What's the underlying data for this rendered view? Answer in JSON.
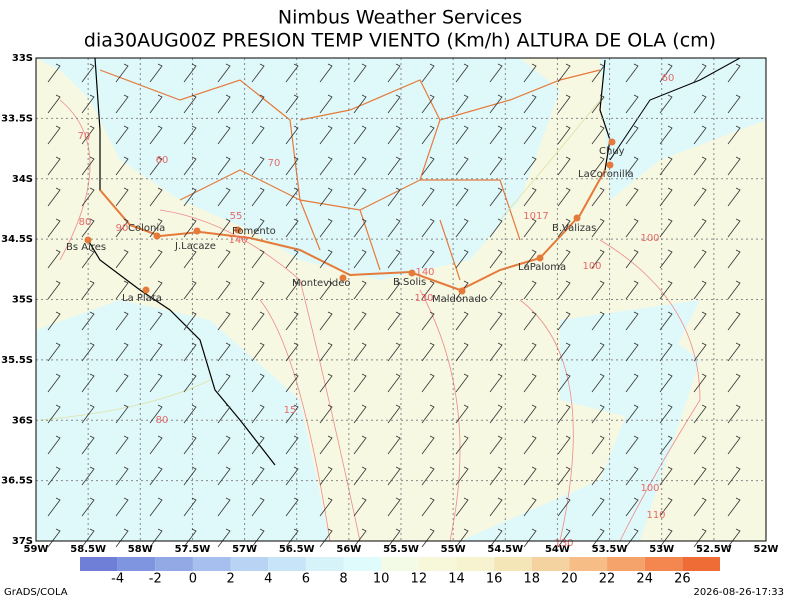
{
  "header": {
    "title": "Nimbus Weather Services",
    "subtitle": "dia30AUG00Z PRESION TEMP VIENTO (Km/h) ALTURA DE OLA (cm)"
  },
  "x_axis": {
    "labels": [
      "59W",
      "58.5W",
      "58W",
      "57.5W",
      "57W",
      "56.5W",
      "56W",
      "55.5W",
      "55W",
      "54.5W",
      "54W",
      "53.5W",
      "53W",
      "52.5W",
      "52W"
    ]
  },
  "y_axis": {
    "labels": [
      "33S",
      "33.5S",
      "34S",
      "34.5S",
      "35S",
      "35.5S",
      "36S",
      "36.5S",
      "37S"
    ]
  },
  "cities": [
    "Bs Aires",
    "Colonia",
    "J.Lacaze",
    "Fomento",
    "Montevideo",
    "B.Solis",
    "Maldonado",
    "LaPaloma",
    "B.Valizas",
    "LaCoronilla",
    "Chuy",
    "La Plata"
  ],
  "contour_labels": [
    "70",
    "60",
    "70",
    "80",
    "90",
    "55",
    "140",
    "1017",
    "100",
    "100",
    "130",
    "140",
    "15",
    "80",
    "100",
    "110",
    "130",
    "60"
  ],
  "colorbar": {
    "labels": [
      "-4",
      "-2",
      "0",
      "2",
      "4",
      "6",
      "8",
      "10",
      "12",
      "14",
      "16",
      "18",
      "20",
      "22",
      "24",
      "26"
    ],
    "colors": [
      "#6f7fd8",
      "#8095e0",
      "#92a9e6",
      "#a6bfee",
      "#b8d3f4",
      "#c8e4f8",
      "#d6f3fa",
      "#e0fbfb",
      "#f3fbe6",
      "#f7f8d9",
      "#f7f2cf",
      "#f5e6b8",
      "#f5d3a0",
      "#f7bd86",
      "#f6a26b",
      "#f4874f",
      "#f06c36"
    ]
  },
  "footer": {
    "left": "GrADS/COLA",
    "right": "2026-08-26-17:33"
  }
}
